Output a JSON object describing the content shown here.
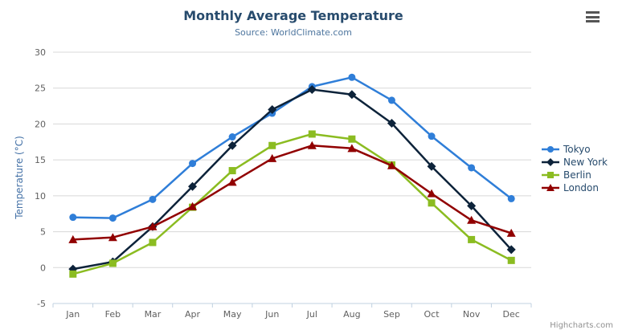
{
  "chart": {
    "credits": "Highcharts.com",
    "menu_icon": "hamburger-menu-icon"
  },
  "chart_data": {
    "type": "line",
    "title": "Monthly Average Temperature",
    "subtitle": "Source: WorldClimate.com",
    "categories": [
      "Jan",
      "Feb",
      "Mar",
      "Apr",
      "May",
      "Jun",
      "Jul",
      "Aug",
      "Sep",
      "Oct",
      "Nov",
      "Dec"
    ],
    "series": [
      {
        "name": "Tokyo",
        "color": "#2f7ed8",
        "marker": "circle",
        "values": [
          7.0,
          6.9,
          9.5,
          14.5,
          18.2,
          21.5,
          25.2,
          26.5,
          23.3,
          18.3,
          13.9,
          9.6
        ]
      },
      {
        "name": "New York",
        "color": "#0d233a",
        "marker": "diamond",
        "values": [
          -0.2,
          0.8,
          5.7,
          11.3,
          17.0,
          22.0,
          24.8,
          24.1,
          20.1,
          14.1,
          8.6,
          2.5
        ]
      },
      {
        "name": "Berlin",
        "color": "#8bbc21",
        "marker": "square",
        "values": [
          -0.9,
          0.6,
          3.5,
          8.4,
          13.5,
          17.0,
          18.6,
          17.9,
          14.3,
          9.0,
          3.9,
          1.0
        ]
      },
      {
        "name": "London",
        "color": "#910000",
        "marker": "triangle",
        "values": [
          3.9,
          4.2,
          5.7,
          8.5,
          11.9,
          15.2,
          17.0,
          16.6,
          14.2,
          10.3,
          6.6,
          4.8
        ]
      }
    ],
    "xlabel": "",
    "ylabel": "Temperature (°C)",
    "ylim": [
      -5,
      30
    ],
    "ytick_step": 5,
    "grid": true,
    "legend_position": "right",
    "colors": {
      "gridline": "#D8D8D8",
      "axis_line": "#C0D0E0",
      "axis_label": "#606060",
      "title": "#274b6d",
      "subtitle": "#4d759e",
      "axis_title": "#4572a7",
      "legend_text": "#274b6d",
      "credits_text": "#909090"
    }
  }
}
